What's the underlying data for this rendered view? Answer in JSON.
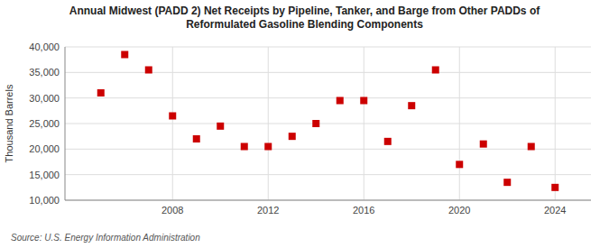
{
  "chart_data": {
    "type": "scatter",
    "title": "Annual Midwest (PADD 2) Net Receipts by Pipeline, Tanker, and Barge from Other PADDs of\nReformulated Gasoline Blending Components",
    "ylabel": "Thousand Barrels",
    "source": "Source: U.S. Energy Information Administration",
    "x": [
      2005,
      2006,
      2007,
      2008,
      2009,
      2010,
      2011,
      2012,
      2013,
      2014,
      2015,
      2016,
      2017,
      2018,
      2019,
      2020,
      2021,
      2022,
      2023,
      2024
    ],
    "values": [
      31000,
      38500,
      35500,
      26500,
      22000,
      24500,
      20500,
      20500,
      22500,
      25000,
      29500,
      29500,
      21500,
      28500,
      35500,
      17000,
      21000,
      13500,
      20500,
      12500
    ],
    "color": "#cc0000",
    "marker": "square",
    "xlim": [
      2003.5,
      2025.5
    ],
    "xticks": [
      2008,
      2012,
      2016,
      2020,
      2024
    ],
    "ylim": [
      10000,
      40000
    ],
    "yticks": [
      {
        "value": 10000,
        "label": "10,000"
      },
      {
        "value": 15000,
        "label": "15,000"
      },
      {
        "value": 20000,
        "label": "20,000"
      },
      {
        "value": 25000,
        "label": "25,000"
      },
      {
        "value": 30000,
        "label": "30,000"
      },
      {
        "value": 35000,
        "label": "35,000"
      },
      {
        "value": 40000,
        "label": "40,000"
      }
    ],
    "grid": true
  }
}
